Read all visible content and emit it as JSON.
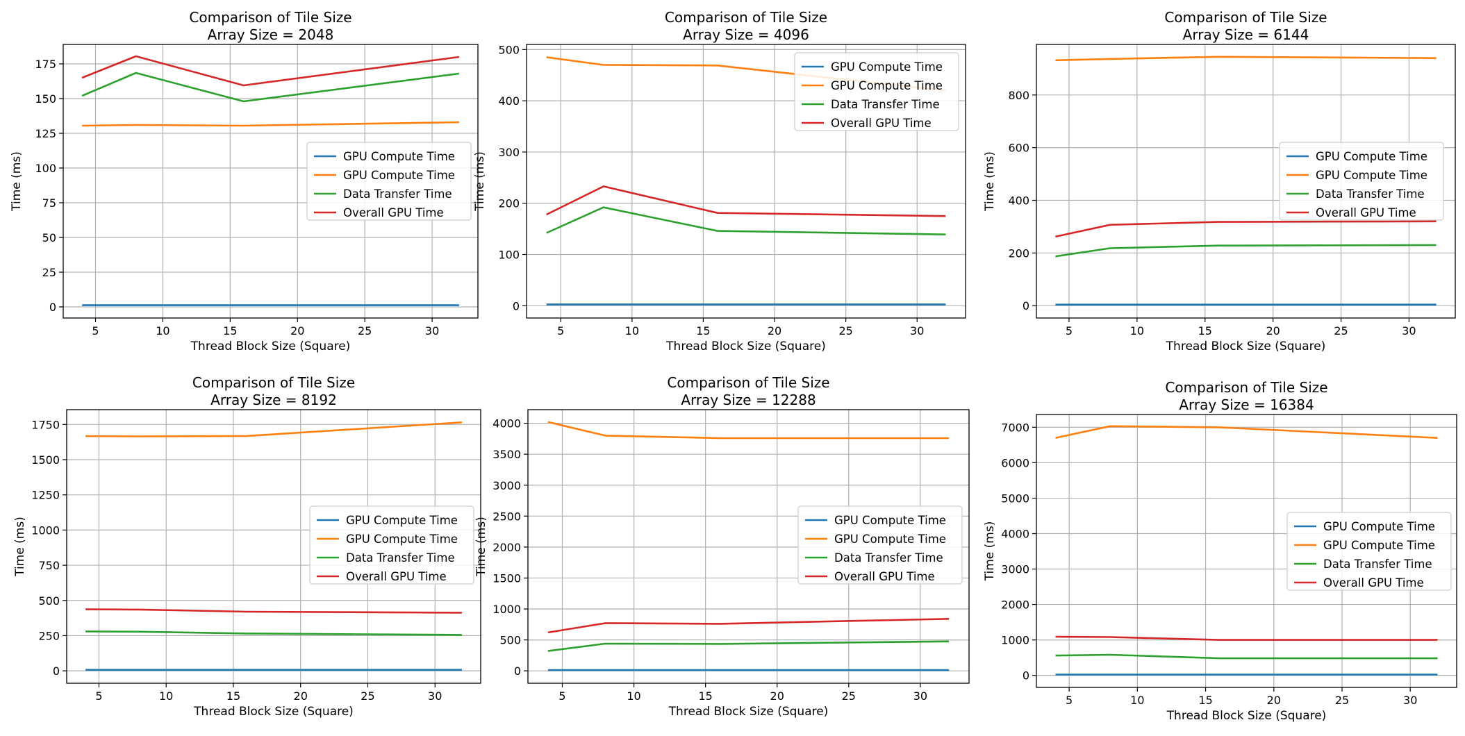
{
  "palette": {
    "blue": "#1f77b4",
    "orange": "#ff7f0e",
    "green": "#2ca02c",
    "red": "#d62728",
    "grid": "#b0b0b0",
    "legend_border": "#cccccc"
  },
  "chart_data": [
    {
      "type": "line",
      "title": "Comparison of Tile Size",
      "subtitle": "Array Size = 2048",
      "xlabel": "Thread Block Size (Square)",
      "ylabel": "Time (ms)",
      "xlim": [
        2.6,
        33.4
      ],
      "ylim": [
        -8,
        189
      ],
      "x_ticks": [
        5,
        10,
        15,
        20,
        25,
        30
      ],
      "y_ticks": [
        0,
        25,
        50,
        75,
        100,
        125,
        150,
        175
      ],
      "grid": true,
      "legend_position": "center-right",
      "x": [
        4,
        8,
        16,
        32
      ],
      "series": [
        {
          "name": "GPU Compute Time",
          "color": "#1f77b4",
          "values": [
            1.2,
            1.2,
            1.2,
            1.2
          ]
        },
        {
          "name": "GPU Compute Time",
          "color": "#ff7f0e",
          "values": [
            130.5,
            131,
            130.5,
            133
          ]
        },
        {
          "name": "Data Transfer Time",
          "color": "#2ca02c",
          "values": [
            152,
            168.5,
            148,
            168
          ]
        },
        {
          "name": "Overall GPU Time",
          "color": "#d62728",
          "values": [
            165,
            180.5,
            159.5,
            180
          ]
        }
      ]
    },
    {
      "type": "line",
      "title": "Comparison of Tile Size",
      "subtitle": "Array Size = 4096",
      "xlabel": "Thread Block Size (Square)",
      "ylabel": "Time (ms)",
      "xlim": [
        2.6,
        33.4
      ],
      "ylim": [
        -24,
        510
      ],
      "x_ticks": [
        5,
        10,
        15,
        20,
        25,
        30
      ],
      "y_ticks": [
        0,
        100,
        200,
        300,
        400,
        500
      ],
      "grid": true,
      "legend_position": "upper-right",
      "x": [
        4,
        8,
        16,
        32
      ],
      "series": [
        {
          "name": "GPU Compute Time",
          "color": "#1f77b4",
          "values": [
            2.5,
            2.5,
            2.5,
            2.5
          ]
        },
        {
          "name": "GPU Compute Time",
          "color": "#ff7f0e",
          "values": [
            485,
            470,
            469,
            420
          ]
        },
        {
          "name": "Data Transfer Time",
          "color": "#2ca02c",
          "values": [
            142,
            192,
            146,
            139
          ]
        },
        {
          "name": "Overall GPU Time",
          "color": "#d62728",
          "values": [
            178,
            233,
            181,
            175
          ]
        }
      ]
    },
    {
      "type": "line",
      "title": "Comparison of Tile Size",
      "subtitle": "Array Size = 6144",
      "xlabel": "Thread Block Size (Square)",
      "ylabel": "Time (ms)",
      "xlim": [
        2.6,
        33.4
      ],
      "ylim": [
        -47,
        992
      ],
      "x_ticks": [
        5,
        10,
        15,
        20,
        25,
        30
      ],
      "y_ticks": [
        0,
        200,
        400,
        600,
        800
      ],
      "grid": true,
      "legend_position": "center-right",
      "x": [
        4,
        8,
        16,
        32
      ],
      "series": [
        {
          "name": "GPU Compute Time",
          "color": "#1f77b4",
          "values": [
            4,
            4,
            4,
            4
          ]
        },
        {
          "name": "GPU Compute Time",
          "color": "#ff7f0e",
          "values": [
            932,
            937,
            945,
            940
          ]
        },
        {
          "name": "Data Transfer Time",
          "color": "#2ca02c",
          "values": [
            187,
            218,
            228,
            230
          ]
        },
        {
          "name": "Overall GPU Time",
          "color": "#d62728",
          "values": [
            262,
            307,
            318,
            320
          ]
        }
      ]
    },
    {
      "type": "line",
      "title": "Comparison of Tile Size",
      "subtitle": "Array Size = 8192",
      "xlabel": "Thread Block Size (Square)",
      "ylabel": "Time (ms)",
      "xlim": [
        2.6,
        33.4
      ],
      "ylim": [
        -88,
        1855
      ],
      "x_ticks": [
        5,
        10,
        15,
        20,
        25,
        30
      ],
      "y_ticks": [
        0,
        250,
        500,
        750,
        1000,
        1250,
        1500,
        1750
      ],
      "grid": true,
      "legend_position": "center-right",
      "x": [
        4,
        8,
        16,
        32
      ],
      "series": [
        {
          "name": "GPU Compute Time",
          "color": "#1f77b4",
          "values": [
            7,
            7,
            7,
            7
          ]
        },
        {
          "name": "GPU Compute Time",
          "color": "#ff7f0e",
          "values": [
            1667,
            1665,
            1668,
            1765
          ]
        },
        {
          "name": "Data Transfer Time",
          "color": "#2ca02c",
          "values": [
            280,
            278,
            265,
            255
          ]
        },
        {
          "name": "Overall GPU Time",
          "color": "#d62728",
          "values": [
            437,
            435,
            420,
            413
          ]
        }
      ]
    },
    {
      "type": "line",
      "title": "Comparison of Tile Size",
      "subtitle": "Array Size = 12288",
      "xlabel": "Thread Block Size (Square)",
      "ylabel": "Time (ms)",
      "xlim": [
        2.6,
        33.4
      ],
      "ylim": [
        -200,
        4220
      ],
      "x_ticks": [
        5,
        10,
        15,
        20,
        25,
        30
      ],
      "y_ticks": [
        0,
        500,
        1000,
        1500,
        2000,
        2500,
        3000,
        3500,
        4000
      ],
      "grid": true,
      "legend_position": "center-right",
      "x": [
        4,
        8,
        16,
        32
      ],
      "series": [
        {
          "name": "GPU Compute Time",
          "color": "#1f77b4",
          "values": [
            12,
            12,
            12,
            12
          ]
        },
        {
          "name": "GPU Compute Time",
          "color": "#ff7f0e",
          "values": [
            4020,
            3800,
            3760,
            3760
          ]
        },
        {
          "name": "Data Transfer Time",
          "color": "#2ca02c",
          "values": [
            320,
            440,
            435,
            475
          ]
        },
        {
          "name": "Overall GPU Time",
          "color": "#d62728",
          "values": [
            620,
            770,
            760,
            840
          ]
        }
      ]
    },
    {
      "type": "line",
      "title": "Comparison of Tile Size",
      "subtitle": "Array Size = 16384",
      "xlabel": "Thread Block Size (Square)",
      "ylabel": "Time (ms)",
      "xlim": [
        2.6,
        33.4
      ],
      "ylim": [
        -340,
        7360
      ],
      "x_ticks": [
        5,
        10,
        15,
        20,
        25,
        30
      ],
      "y_ticks": [
        0,
        1000,
        2000,
        3000,
        4000,
        5000,
        6000,
        7000
      ],
      "grid": true,
      "legend_position": "center-right",
      "x": [
        4,
        8,
        16,
        32
      ],
      "series": [
        {
          "name": "GPU Compute Time",
          "color": "#1f77b4",
          "values": [
            20,
            20,
            20,
            20
          ]
        },
        {
          "name": "GPU Compute Time",
          "color": "#ff7f0e",
          "values": [
            6700,
            7030,
            7000,
            6700
          ]
        },
        {
          "name": "Data Transfer Time",
          "color": "#2ca02c",
          "values": [
            560,
            580,
            480,
            480
          ]
        },
        {
          "name": "Overall GPU Time",
          "color": "#d62728",
          "values": [
            1090,
            1080,
            1000,
            1000
          ]
        }
      ]
    }
  ]
}
